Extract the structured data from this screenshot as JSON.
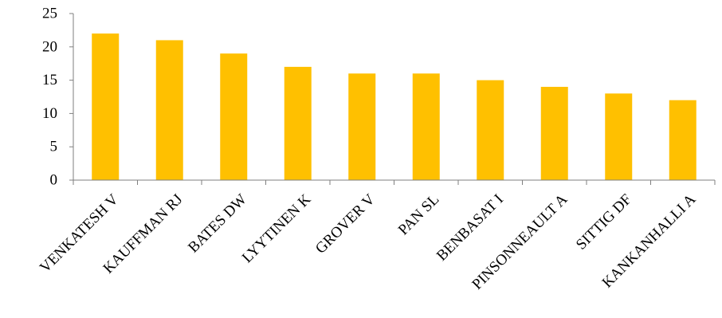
{
  "chart_data": {
    "type": "bar",
    "title": "",
    "xlabel": "",
    "ylabel": "",
    "categories": [
      "VENKATESH V",
      "KAUFFMAN RJ",
      "BATES DW",
      "LYYTINEN K",
      "GROVER V",
      "PAN SL",
      "BENBASAT I",
      "PINSONNEAULT A",
      "SITTIG DF",
      "KANKANHALLI A"
    ],
    "values": [
      22,
      21,
      19,
      17,
      16,
      16,
      15,
      14,
      13,
      12
    ],
    "ylim": [
      0,
      25
    ],
    "yticks": [
      0,
      5,
      10,
      15,
      20,
      25
    ],
    "grid": false,
    "legend": "none",
    "bar_color": "#FFC000",
    "axis_color": "#7F7F7F"
  }
}
